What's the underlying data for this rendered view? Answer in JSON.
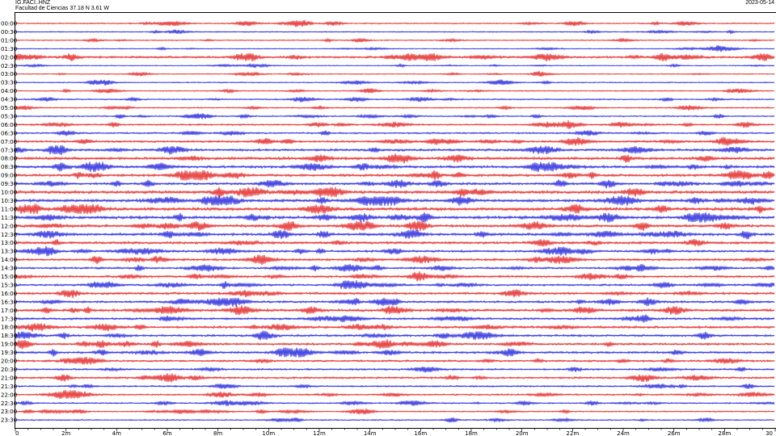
{
  "header": {
    "station": "IG.FACI..HNZ",
    "description": "Facultad de Ciencias  37.18 N 3.61 W",
    "date": "2023-05-14"
  },
  "chart_data": {
    "type": "line",
    "title": "",
    "xlabel": "",
    "ylabel": "",
    "xlim": [
      0,
      30
    ],
    "x_ticks": [
      "0",
      "2m",
      "4m",
      "6m",
      "8m",
      "10m",
      "12m",
      "14m",
      "16m",
      "18m",
      "20m",
      "22m",
      "24m",
      "26m",
      "28m",
      "30"
    ],
    "row_labels": [
      "00:00",
      "00:30",
      "01:00",
      "01:30",
      "02:00",
      "02:30",
      "03:00",
      "03:30",
      "04:00",
      "04:30",
      "05:00",
      "05:30",
      "06:00",
      "06:30",
      "07:00",
      "07:30",
      "08:00",
      "08:30",
      "09:00",
      "09:30",
      "10:00",
      "10:30",
      "11:00",
      "11:30",
      "12:00",
      "12:30",
      "13:00",
      "13:30",
      "14:00",
      "14:30",
      "15:00",
      "15:30",
      "16:00",
      "16:30",
      "17:00",
      "17:30",
      "18:00",
      "18:30",
      "19:00",
      "19:30",
      "20:00",
      "20:30",
      "21:00",
      "21:30",
      "22:00",
      "22:30",
      "23:00",
      "23:30"
    ],
    "row_colors": [
      "#e00000",
      "#0000d8"
    ],
    "row_amplitudes": [
      0.35,
      0.3,
      0.3,
      0.25,
      0.6,
      0.25,
      0.25,
      0.3,
      0.3,
      0.35,
      0.35,
      0.35,
      0.45,
      0.45,
      0.55,
      0.65,
      0.75,
      0.7,
      0.7,
      0.65,
      0.8,
      0.8,
      0.85,
      0.8,
      0.75,
      0.75,
      0.7,
      0.6,
      0.6,
      0.55,
      0.6,
      0.55,
      0.65,
      0.6,
      0.7,
      0.6,
      0.65,
      0.6,
      0.6,
      0.6,
      0.55,
      0.5,
      0.55,
      0.45,
      0.45,
      0.4,
      0.35,
      0.35
    ],
    "grid": false,
    "legend": "none"
  }
}
